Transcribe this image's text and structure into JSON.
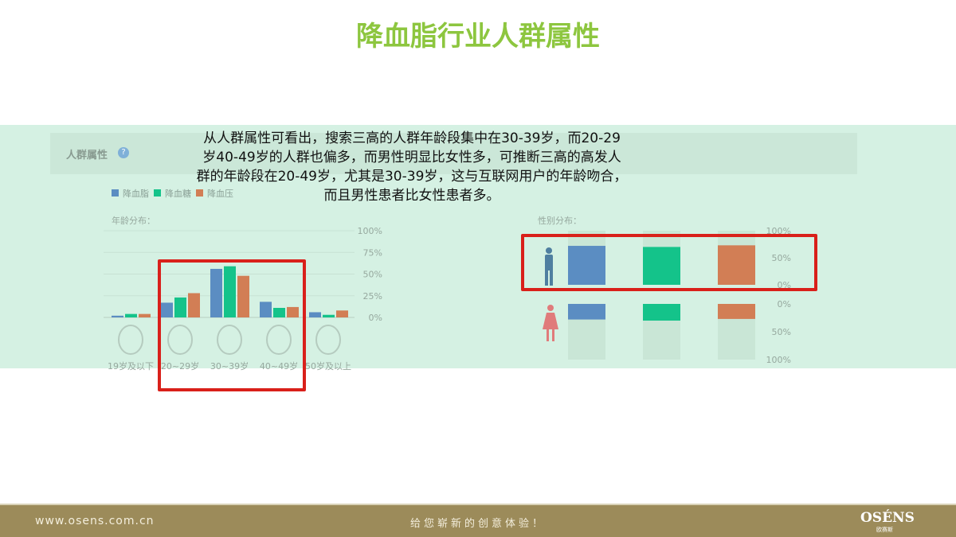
{
  "title": "降血脂行业人群属性",
  "panel": {
    "label": "人群属性",
    "help_icon": "question-circle-icon"
  },
  "paragraph": [
    "从人群属性可看出，搜索三高的人群年龄段集中在30-39岁，而20-29",
    "岁40-49岁的人群也偏多，而男性明显比女性多，可推断三高的高发人",
    "群的年龄段在20-49岁，尤其是30-39岁，这与互联网用户的年龄吻合，",
    "而且男性患者比女性患者多。"
  ],
  "legend": [
    {
      "name": "降血脂",
      "color": "#5b8dc2"
    },
    {
      "name": "降血糖",
      "color": "#14c38a"
    },
    {
      "name": "降血压",
      "color": "#d27e55"
    }
  ],
  "chart_data": [
    {
      "type": "bar",
      "title": "年龄分布：",
      "categories": [
        "19岁及以下",
        "20~29岁",
        "30~39岁",
        "40~49岁",
        "50岁及以上"
      ],
      "category_icons": [
        "child-face-icon",
        "young-man-face-icon",
        "glasses-man-face-icon",
        "mustache-man-face-icon",
        "elderly-face-icon"
      ],
      "ylim": [
        0,
        100
      ],
      "yticks": [
        "100%",
        "75%",
        "50%",
        "25%",
        "0%"
      ],
      "grid": true,
      "series": [
        {
          "name": "降血脂",
          "values": [
            2,
            17,
            56,
            18,
            6
          ]
        },
        {
          "name": "降血糖",
          "values": [
            4,
            23,
            59,
            11,
            3
          ]
        },
        {
          "name": "降血压",
          "values": [
            4,
            28,
            48,
            12,
            8
          ]
        }
      ],
      "highlight": [
        "20~29岁",
        "30~39岁",
        "40~49岁"
      ]
    },
    {
      "type": "bar",
      "title": "性别分布：",
      "categories": [
        "降血脂",
        "降血糖",
        "降血压"
      ],
      "groups": [
        {
          "icon": "male-icon",
          "color": "#4f7fa0",
          "values": [
            72,
            70,
            73
          ],
          "ticks": [
            "100%",
            "50%",
            "0%"
          ]
        },
        {
          "icon": "female-icon",
          "color": "#e07b7b",
          "values": [
            28,
            30,
            27
          ],
          "ticks": [
            "0%",
            "50%",
            "100%"
          ]
        }
      ],
      "ylim": [
        0,
        100
      ],
      "highlight": "male"
    }
  ],
  "footer": {
    "url": "www.osens.com.cn",
    "slogan": "给您崭新的创意体验！",
    "logo": "OSÉNS",
    "logo_sub": "欧赛斯"
  }
}
